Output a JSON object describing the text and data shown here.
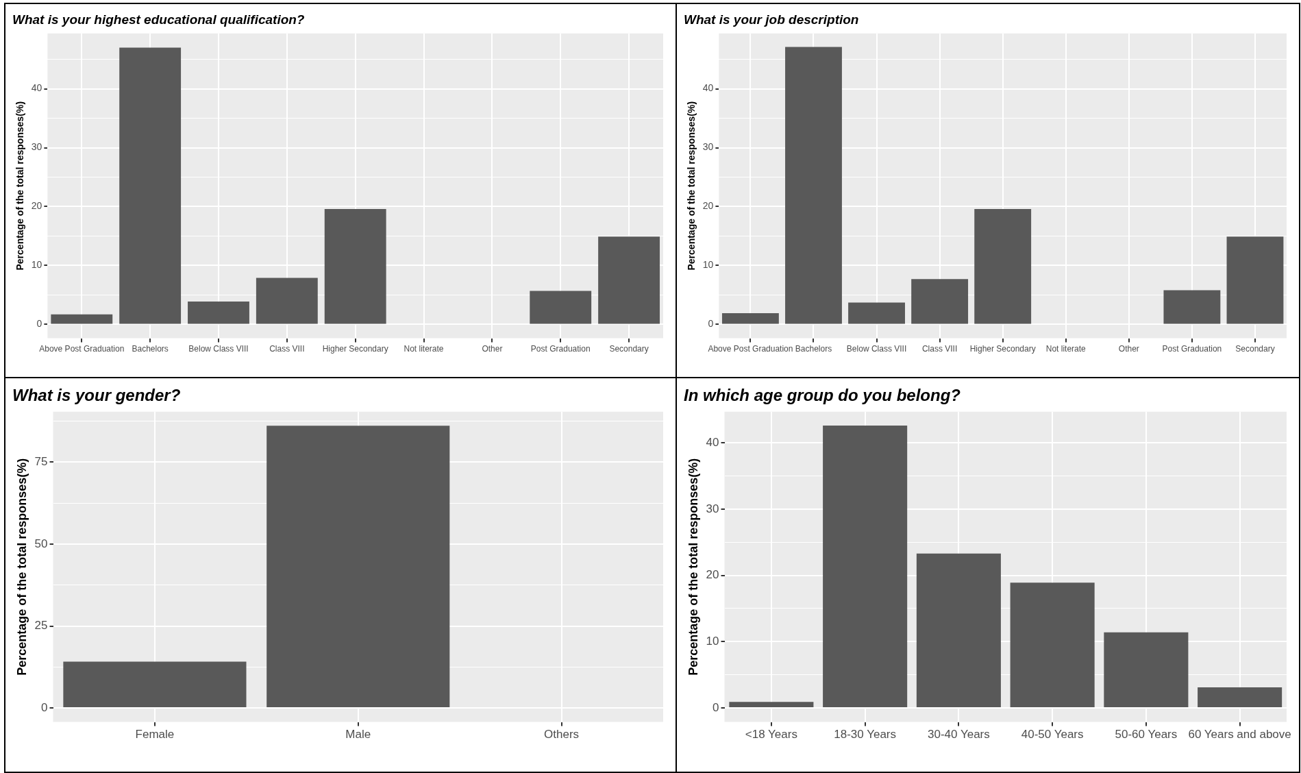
{
  "chart_data": [
    {
      "type": "bar",
      "title": "What is your highest educational qualification?",
      "ylabel": "Percentage of the total responses(%)",
      "categories": [
        "Above Post Graduation",
        "Bachelors",
        "Below Class VIII",
        "Class VIII",
        "Higher Secondary",
        "Not literate",
        "Other",
        "Post Graduation",
        "Secondary"
      ],
      "values": [
        1.7,
        47.0,
        3.9,
        7.9,
        19.6,
        0,
        0,
        5.7,
        14.9
      ],
      "color": "#595959",
      "ylim": [
        -2.35,
        49.4
      ],
      "yticks": [
        0,
        {
          "value": 5,
          "label": null
        },
        10,
        {
          "value": 15,
          "label": null
        },
        20,
        {
          "value": 25,
          "label": null
        },
        30,
        {
          "value": 35,
          "label": null
        },
        40,
        {
          "value": 45,
          "label": null
        }
      ],
      "grid": true
    },
    {
      "type": "bar",
      "title": "What is your job description",
      "ylabel": "Percentage of the total responses(%)",
      "categories": [
        "Above Post Graduation",
        "Bachelors",
        "Below Class VIII",
        "Class VIII",
        "Higher Secondary",
        "Not literate",
        "Other",
        "Post Graduation",
        "Secondary"
      ],
      "values": [
        1.9,
        47.1,
        3.7,
        7.7,
        19.6,
        0,
        0,
        5.8,
        14.9
      ],
      "color": "#595959",
      "ylim": [
        -2.35,
        49.4
      ],
      "yticks": [
        0,
        {
          "value": 5,
          "label": null
        },
        10,
        {
          "value": 15,
          "label": null
        },
        20,
        {
          "value": 25,
          "label": null
        },
        30,
        {
          "value": 35,
          "label": null
        },
        40,
        {
          "value": 45,
          "label": null
        }
      ],
      "grid": true
    },
    {
      "type": "bar",
      "title": "What is your gender?",
      "ylabel": "Percentage of the total responses(%)",
      "categories": [
        "Female",
        "Male",
        "Others"
      ],
      "values": [
        14.1,
        86.1,
        0
      ],
      "color": "#595959",
      "ylim": [
        -4.3,
        90.4
      ],
      "yticks": [
        0,
        {
          "value": 12.5,
          "label": null
        },
        25,
        {
          "value": 37.5,
          "label": null
        },
        50,
        {
          "value": 62.5,
          "label": null
        },
        75,
        {
          "value": 87.5,
          "label": null
        }
      ],
      "grid": true
    },
    {
      "type": "bar",
      "title": "In which age group do you belong?",
      "ylabel": "Percentage of the total responses(%)",
      "categories": [
        "<18 Years",
        "18-30 Years",
        "30-40 Years",
        "40-50 Years",
        "50-60 Years",
        "60 Years and above"
      ],
      "values": [
        0.9,
        42.6,
        23.3,
        18.9,
        11.4,
        3.1
      ],
      "color": "#595959",
      "ylim": [
        -2.13,
        44.7
      ],
      "yticks": [
        0,
        {
          "value": 5,
          "label": null
        },
        10,
        {
          "value": 15,
          "label": null
        },
        20,
        {
          "value": 25,
          "label": null
        },
        30,
        {
          "value": 35,
          "label": null
        },
        40
      ],
      "grid": true
    }
  ]
}
